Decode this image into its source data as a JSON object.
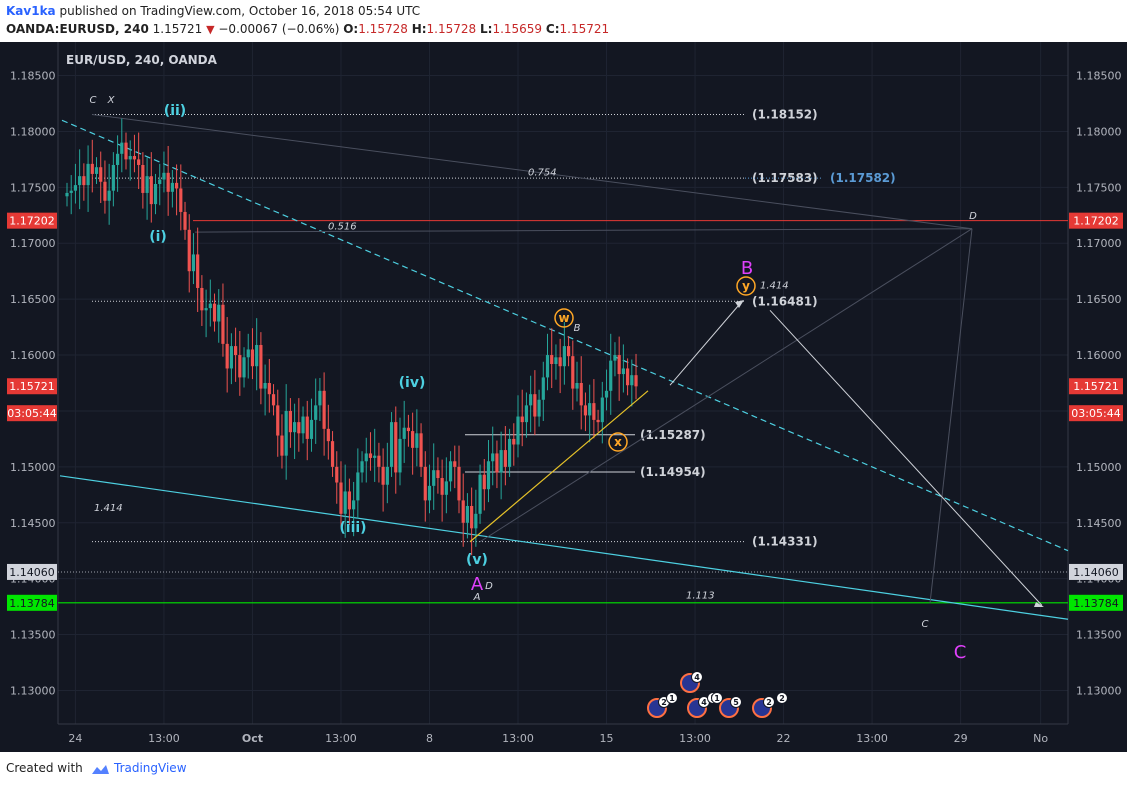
{
  "header": {
    "author": "Kav1ka",
    "published_text": "published on TradingView.com, October 16, 2018 05:54 UTC",
    "symbol": "OANDA:EURUSD, 240",
    "last": "1.15721",
    "change": "−0.00067 (−0.06%)",
    "o_label": "O:",
    "o_value": "1.15728",
    "h_label": "H:",
    "h_value": "1.15728",
    "l_label": "L:",
    "l_value": "1.15659",
    "c_label": "C:",
    "c_value": "1.15721"
  },
  "footer": {
    "created_text": "Created with",
    "brand": "TradingView"
  },
  "colors": {
    "background": "#131722",
    "grid": "#1f2432",
    "text": "#b2b5be",
    "up": "#26a69a",
    "down": "#ef5350",
    "channel": "#4dd0e1",
    "support_green": "#00e600",
    "resistance_red": "#e53935",
    "wave_cyan": "#4dd0e1",
    "wave_magenta": "#e040fb",
    "wave_orange": "#ffa726",
    "fib_blue": "#5b9bd5",
    "trend_yellow": "#e6c229"
  },
  "chart_data": {
    "type": "candlestick",
    "title": "EUR/USD, 240, OANDA",
    "ylim": [
      1.127,
      1.188
    ],
    "y_ticks": [
      "1.18500",
      "1.18000",
      "1.17500",
      "1.17000",
      "1.16500",
      "1.16000",
      "1.15500",
      "1.15000",
      "1.14500",
      "1.14000",
      "1.13500",
      "1.13000"
    ],
    "x_ticks": [
      {
        "label": "24",
        "i": 2
      },
      {
        "label": "13:00",
        "i": 23
      },
      {
        "label": "Oct",
        "i": 44
      },
      {
        "label": "13:00",
        "i": 65
      },
      {
        "label": "8",
        "i": 86
      },
      {
        "label": "13:00",
        "i": 107
      },
      {
        "label": "15",
        "i": 128
      },
      {
        "label": "13:00",
        "i": 149
      },
      {
        "label": "22",
        "i": 170
      },
      {
        "label": "13:00",
        "i": 191
      },
      {
        "label": "29",
        "i": 212
      },
      {
        "label": "No",
        "i": 231
      }
    ],
    "price_tags": [
      {
        "label": "1.18500",
        "v": 1.185
      },
      {
        "label": "1.18000",
        "v": 1.18
      },
      {
        "label": "1.17500",
        "v": 1.175
      },
      {
        "label": "1.17202",
        "v": 1.17202,
        "style": "red"
      },
      {
        "label": "1.17000",
        "v": 1.17
      },
      {
        "label": "1.16500",
        "v": 1.165
      },
      {
        "label": "1.16000",
        "v": 1.16
      },
      {
        "label": "1.15721",
        "v": 1.15721,
        "style": "red"
      },
      {
        "label": "03:05:44",
        "v": 1.1548,
        "style": "red"
      },
      {
        "label": "1.15000",
        "v": 1.15
      },
      {
        "label": "1.14500",
        "v": 1.145
      },
      {
        "label": "1.14060",
        "v": 1.1406,
        "style": "grey"
      },
      {
        "label": "1.13784",
        "v": 1.13784,
        "style": "green"
      },
      {
        "label": "1.13500",
        "v": 1.135
      },
      {
        "label": "1.13000",
        "v": 1.13
      }
    ],
    "candles_close": [
      1.1745,
      1.1747,
      1.1752,
      1.176,
      1.1752,
      1.1771,
      1.1762,
      1.1768,
      1.1755,
      1.1738,
      1.1747,
      1.177,
      1.178,
      1.179,
      1.1775,
      1.1778,
      1.1775,
      1.177,
      1.1745,
      1.176,
      1.1735,
      1.1753,
      1.1757,
      1.1763,
      1.1746,
      1.1754,
      1.1749,
      1.1728,
      1.1712,
      1.1675,
      1.169,
      1.166,
      1.164,
      1.1642,
      1.1646,
      1.163,
      1.1645,
      1.161,
      1.1588,
      1.1608,
      1.16,
      1.158,
      1.1598,
      1.1605,
      1.159,
      1.1609,
      1.157,
      1.1575,
      1.1565,
      1.1555,
      1.1528,
      1.151,
      1.155,
      1.1531,
      1.154,
      1.153,
      1.1545,
      1.1525,
      1.1542,
      1.1555,
      1.1568,
      1.1534,
      1.1523,
      1.15,
      1.1486,
      1.1458,
      1.1478,
      1.1462,
      1.147,
      1.1495,
      1.1505,
      1.1512,
      1.1508,
      1.151,
      1.15,
      1.1484,
      1.15,
      1.154,
      1.1495,
      1.1525,
      1.1535,
      1.1532,
      1.1517,
      1.153,
      1.15,
      1.147,
      1.1483,
      1.1497,
      1.149,
      1.1475,
      1.1487,
      1.1505,
      1.15,
      1.147,
      1.145,
      1.1465,
      1.1445,
      1.1458,
      1.1493,
      1.148,
      1.1505,
      1.1512,
      1.1495,
      1.1515,
      1.15,
      1.1525,
      1.152,
      1.1545,
      1.154,
      1.1555,
      1.1565,
      1.1545,
      1.156,
      1.158,
      1.16,
      1.1592,
      1.1598,
      1.159,
      1.1608,
      1.1599,
      1.157,
      1.1575,
      1.1555,
      1.1546,
      1.1557,
      1.1542,
      1.154,
      1.1562,
      1.1568,
      1.1595,
      1.16,
      1.1583,
      1.1588,
      1.1573,
      1.1582,
      1.1572
    ],
    "annotations": {
      "levels": [
        {
          "label": "(1.18152)",
          "v": 1.18152
        },
        {
          "label": "(1.17583)",
          "v": 1.17583
        },
        {
          "label": "(1.17582)",
          "v": 1.17582
        },
        {
          "label": "(1.16481)",
          "v": 1.16481
        },
        {
          "label": "(1.15287)",
          "v": 1.15287
        },
        {
          "label": "(1.14954)",
          "v": 1.14954
        },
        {
          "label": "(1.14331)",
          "v": 1.14331
        }
      ],
      "fib_labels": [
        "0.754",
        "0.516",
        "1.414",
        "1.414",
        "1.113"
      ],
      "wave_labels": {
        "ii": "(ii)",
        "i": "(i)",
        "iv": "(iv)",
        "iii": "(iii)",
        "v": "(v)",
        "A_big": "A",
        "B_big": "B",
        "C_big": "C",
        "w": "w",
        "x": "x",
        "y": "y",
        "c_small": "C",
        "x_small": "X",
        "b_small": "B",
        "d_small": "D",
        "a_small": "A",
        "d_small2": "D",
        "c_small2": "C"
      },
      "event_badges": [
        "2",
        "1",
        "4",
        "1",
        "1",
        "5",
        "2",
        "2",
        "4"
      ]
    }
  }
}
